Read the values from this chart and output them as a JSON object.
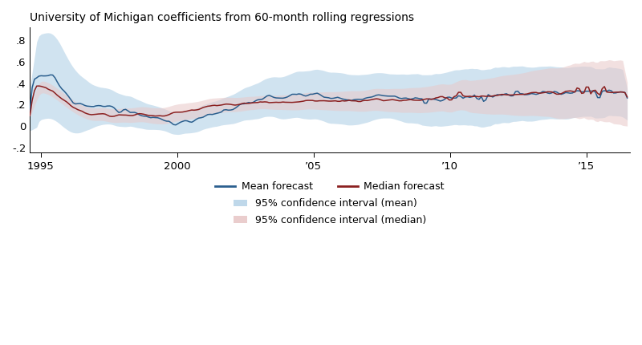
{
  "title": "University of Michigan coefficients from 60-month rolling regressions",
  "xlim": [
    1994.6,
    2016.6
  ],
  "ylim": [
    -0.25,
    0.92
  ],
  "yticks": [
    -0.2,
    0,
    0.2,
    0.4,
    0.6,
    0.8
  ],
  "ytick_labels": [
    "-.2",
    "0",
    ".2",
    ".4",
    ".6",
    ".8"
  ],
  "xtick_positions": [
    1995,
    2000,
    2005,
    2010,
    2015
  ],
  "xtick_labels": [
    "1995",
    "2000",
    "’05",
    "’10",
    "’15"
  ],
  "mean_color": "#2b5f8e",
  "median_color": "#8b2020",
  "mean_ci_color": "#b8d4e8",
  "median_ci_color": "#e8c8c8",
  "mean_ci_alpha": 0.65,
  "median_ci_alpha": 0.55,
  "legend_mean_label": "Mean forecast",
  "legend_median_label": "Median forecast",
  "legend_mean_ci_label": "95% confidence interval (mean)",
  "legend_median_ci_label": "95% confidence interval (median)",
  "figsize": [
    8.0,
    4.3
  ],
  "dpi": 100
}
